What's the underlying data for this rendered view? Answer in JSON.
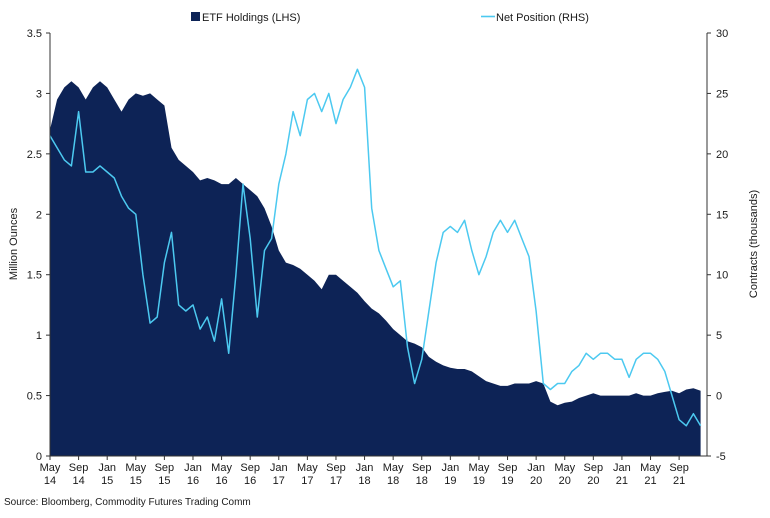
{
  "chart_data": {
    "type": "area",
    "legend": [
      "ETF Holdings (LHS)",
      "Net Position (RHS)"
    ],
    "legend_position": "top-center",
    "ylabel_left": "Million Ounces",
    "ylabel_right": "Contracts (thousands)",
    "ylim_left": [
      0,
      3.5
    ],
    "ylim_right": [
      -5,
      30
    ],
    "yticks_left": [
      "0",
      "0.5",
      "1",
      "1.5",
      "2",
      "2.5",
      "3",
      "3.5"
    ],
    "yticks_right": [
      "-5",
      "0",
      "5",
      "10",
      "15",
      "20",
      "25",
      "30"
    ],
    "xticks": [
      [
        "May",
        "14"
      ],
      [
        "Sep",
        "14"
      ],
      [
        "Jan",
        "15"
      ],
      [
        "May",
        "15"
      ],
      [
        "Sep",
        "15"
      ],
      [
        "Jan",
        "16"
      ],
      [
        "May",
        "16"
      ],
      [
        "Sep",
        "16"
      ],
      [
        "Jan",
        "17"
      ],
      [
        "May",
        "17"
      ],
      [
        "Sep",
        "17"
      ],
      [
        "Jan",
        "18"
      ],
      [
        "May",
        "18"
      ],
      [
        "Sep",
        "18"
      ],
      [
        "Jan",
        "19"
      ],
      [
        "May",
        "19"
      ],
      [
        "Sep",
        "19"
      ],
      [
        "Jan",
        "20"
      ],
      [
        "May",
        "20"
      ],
      [
        "Sep",
        "20"
      ],
      [
        "Jan",
        "21"
      ],
      [
        "May",
        "21"
      ],
      [
        "Sep",
        "21"
      ]
    ],
    "grid": false,
    "colors": {
      "etf": "#0d2356",
      "net": "#4cc9f0"
    },
    "series": [
      {
        "name": "ETF Holdings (LHS)",
        "axis": "left",
        "style": "area",
        "x": [
          "2014-05",
          "2014-06",
          "2014-07",
          "2014-08",
          "2014-09",
          "2014-10",
          "2014-11",
          "2014-12",
          "2015-01",
          "2015-02",
          "2015-03",
          "2015-04",
          "2015-05",
          "2015-06",
          "2015-07",
          "2015-08",
          "2015-09",
          "2015-10",
          "2015-11",
          "2015-12",
          "2016-01",
          "2016-02",
          "2016-03",
          "2016-04",
          "2016-05",
          "2016-06",
          "2016-07",
          "2016-08",
          "2016-09",
          "2016-10",
          "2016-11",
          "2016-12",
          "2017-01",
          "2017-02",
          "2017-03",
          "2017-04",
          "2017-05",
          "2017-06",
          "2017-07",
          "2017-08",
          "2017-09",
          "2017-10",
          "2017-11",
          "2017-12",
          "2018-01",
          "2018-02",
          "2018-03",
          "2018-04",
          "2018-05",
          "2018-06",
          "2018-07",
          "2018-08",
          "2018-09",
          "2018-10",
          "2018-11",
          "2018-12",
          "2019-01",
          "2019-02",
          "2019-03",
          "2019-04",
          "2019-05",
          "2019-06",
          "2019-07",
          "2019-08",
          "2019-09",
          "2019-10",
          "2019-11",
          "2019-12",
          "2020-01",
          "2020-02",
          "2020-03",
          "2020-04",
          "2020-05",
          "2020-06",
          "2020-07",
          "2020-08",
          "2020-09",
          "2020-10",
          "2020-11",
          "2020-12",
          "2021-01",
          "2021-02",
          "2021-03",
          "2021-04",
          "2021-05",
          "2021-06",
          "2021-07",
          "2021-08",
          "2021-09",
          "2021-10",
          "2021-11",
          "2021-12"
        ],
        "values": [
          2.7,
          2.95,
          3.05,
          3.1,
          3.05,
          2.95,
          3.05,
          3.1,
          3.05,
          2.95,
          2.85,
          2.95,
          3.0,
          2.98,
          3.0,
          2.95,
          2.9,
          2.55,
          2.45,
          2.4,
          2.35,
          2.28,
          2.3,
          2.28,
          2.25,
          2.25,
          2.3,
          2.25,
          2.2,
          2.15,
          2.05,
          1.9,
          1.7,
          1.6,
          1.58,
          1.55,
          1.5,
          1.45,
          1.38,
          1.5,
          1.5,
          1.45,
          1.4,
          1.35,
          1.28,
          1.22,
          1.18,
          1.12,
          1.05,
          1.0,
          0.95,
          0.93,
          0.9,
          0.82,
          0.78,
          0.75,
          0.73,
          0.72,
          0.72,
          0.7,
          0.66,
          0.62,
          0.6,
          0.58,
          0.58,
          0.6,
          0.6,
          0.6,
          0.62,
          0.6,
          0.45,
          0.42,
          0.44,
          0.45,
          0.48,
          0.5,
          0.52,
          0.5,
          0.5,
          0.5,
          0.5,
          0.5,
          0.52,
          0.5,
          0.5,
          0.52,
          0.53,
          0.54,
          0.52,
          0.55,
          0.56,
          0.54
        ]
      },
      {
        "name": "Net Position (RHS)",
        "axis": "right",
        "style": "line",
        "x": [
          "2014-05",
          "2014-06",
          "2014-07",
          "2014-08",
          "2014-09",
          "2014-10",
          "2014-11",
          "2014-12",
          "2015-01",
          "2015-02",
          "2015-03",
          "2015-04",
          "2015-05",
          "2015-06",
          "2015-07",
          "2015-08",
          "2015-09",
          "2015-10",
          "2015-11",
          "2015-12",
          "2016-01",
          "2016-02",
          "2016-03",
          "2016-04",
          "2016-05",
          "2016-06",
          "2016-07",
          "2016-08",
          "2016-09",
          "2016-10",
          "2016-11",
          "2016-12",
          "2017-01",
          "2017-02",
          "2017-03",
          "2017-04",
          "2017-05",
          "2017-06",
          "2017-07",
          "2017-08",
          "2017-09",
          "2017-10",
          "2017-11",
          "2017-12",
          "2018-01",
          "2018-02",
          "2018-03",
          "2018-04",
          "2018-05",
          "2018-06",
          "2018-07",
          "2018-08",
          "2018-09",
          "2018-10",
          "2018-11",
          "2018-12",
          "2019-01",
          "2019-02",
          "2019-03",
          "2019-04",
          "2019-05",
          "2019-06",
          "2019-07",
          "2019-08",
          "2019-09",
          "2019-10",
          "2019-11",
          "2019-12",
          "2020-01",
          "2020-02",
          "2020-03",
          "2020-04",
          "2020-05",
          "2020-06",
          "2020-07",
          "2020-08",
          "2020-09",
          "2020-10",
          "2020-11",
          "2020-12",
          "2021-01",
          "2021-02",
          "2021-03",
          "2021-04",
          "2021-05",
          "2021-06",
          "2021-07",
          "2021-08",
          "2021-09",
          "2021-10",
          "2021-11",
          "2021-12"
        ],
        "values": [
          21.5,
          20.5,
          19.5,
          19.0,
          23.5,
          18.5,
          18.5,
          19.0,
          18.5,
          18.0,
          16.5,
          15.5,
          15.0,
          10.0,
          6.0,
          6.5,
          11.0,
          13.5,
          7.5,
          7.0,
          7.5,
          5.5,
          6.5,
          4.5,
          8.0,
          3.5,
          10.0,
          17.5,
          13.0,
          6.5,
          12.0,
          13.0,
          17.5,
          20.0,
          23.5,
          21.5,
          24.5,
          25.0,
          23.5,
          25.0,
          22.5,
          24.5,
          25.5,
          27.0,
          25.5,
          15.5,
          12.0,
          10.5,
          9.0,
          9.5,
          4.0,
          1.0,
          3.0,
          7.0,
          11.0,
          13.5,
          14.0,
          13.5,
          14.5,
          12.0,
          10.0,
          11.5,
          13.5,
          14.5,
          13.5,
          14.5,
          13.0,
          11.5,
          7.0,
          1.0,
          0.5,
          1.0,
          1.0,
          2.0,
          2.5,
          3.5,
          3.0,
          3.5,
          3.5,
          3.0,
          3.0,
          1.5,
          3.0,
          3.5,
          3.5,
          3.0,
          2.0,
          0.0,
          -2.0,
          -2.5,
          -1.5,
          -2.5
        ]
      }
    ]
  },
  "source": "Source: Bloomberg, Commodity Futures Trading Comm"
}
